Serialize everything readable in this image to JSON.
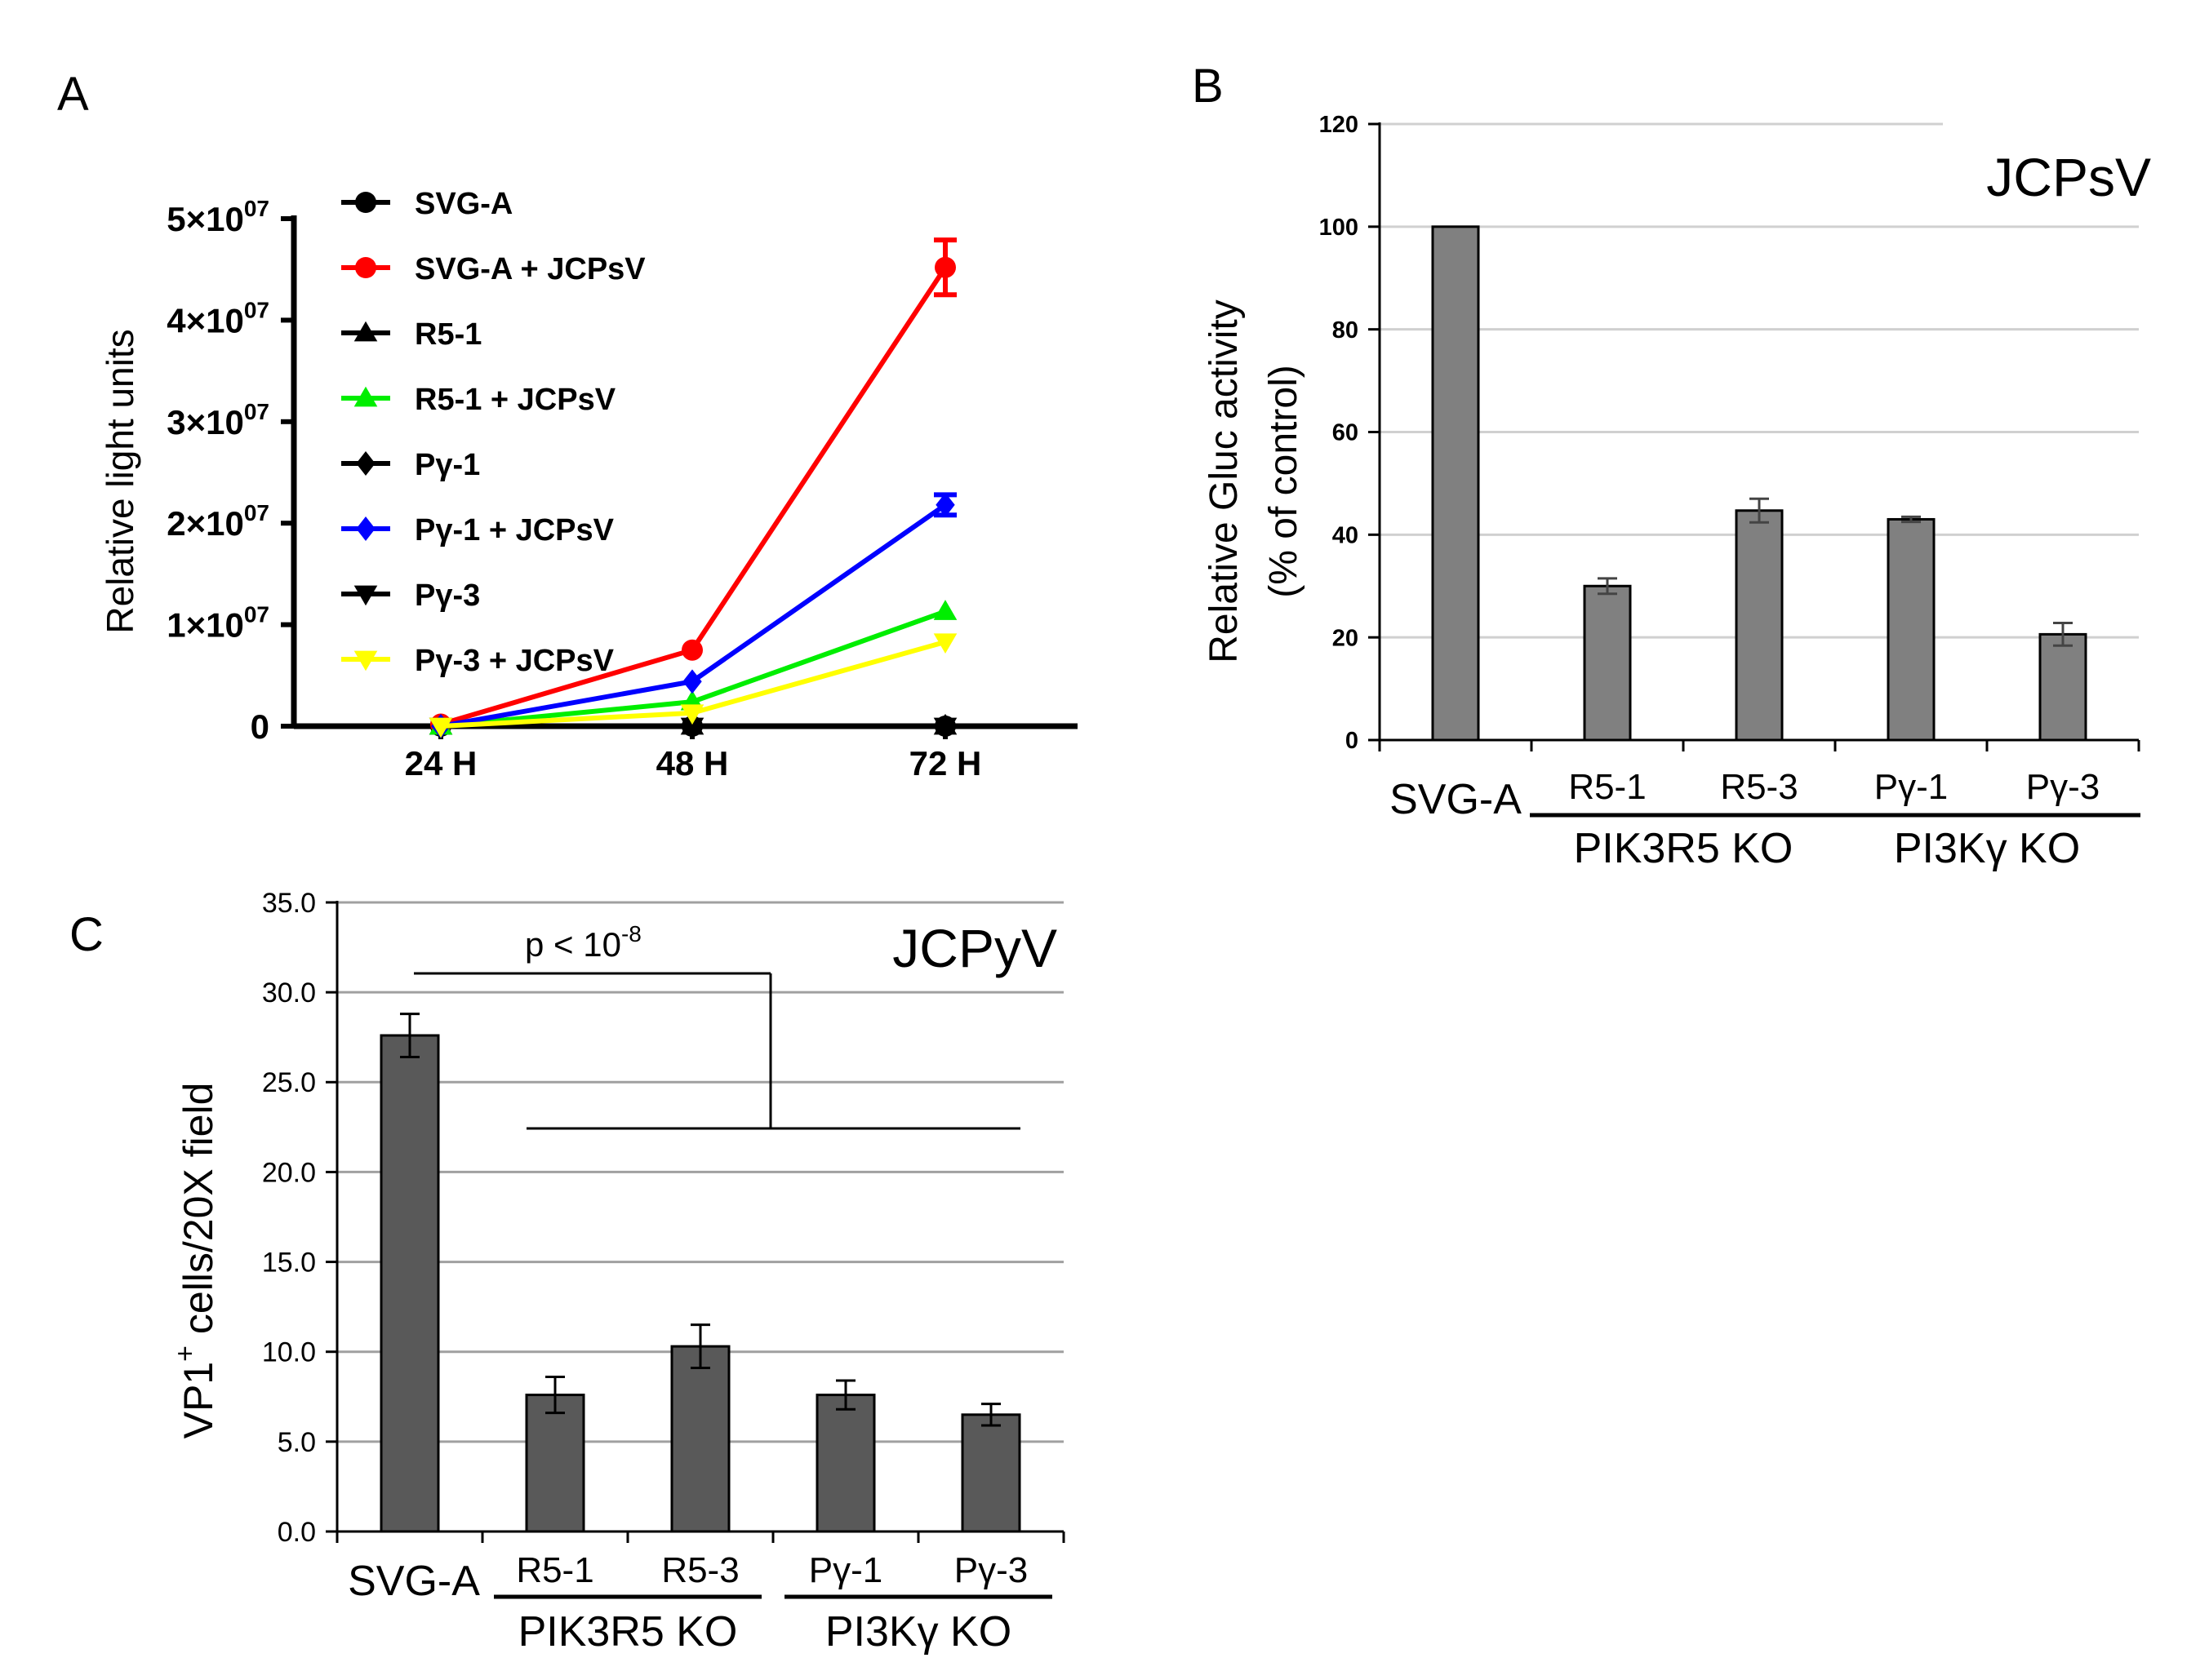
{
  "chart_data": [
    {
      "panel": "A",
      "type": "line",
      "xlabel": "",
      "ylabel": "Relative light units",
      "categories": [
        "24 H",
        "48 H",
        "72 H"
      ],
      "ylim": [
        0,
        50000000
      ],
      "yticks": [
        {
          "value": 0,
          "mantissa": "0",
          "exp": ""
        },
        {
          "value": 10000000,
          "mantissa": "1×10",
          "exp": "07"
        },
        {
          "value": 20000000,
          "mantissa": "2×10",
          "exp": "07"
        },
        {
          "value": 30000000,
          "mantissa": "3×10",
          "exp": "07"
        },
        {
          "value": 40000000,
          "mantissa": "4×10",
          "exp": "07"
        },
        {
          "value": 50000000,
          "mantissa": "5×10",
          "exp": "07"
        }
      ],
      "series": [
        {
          "name": "SVG-A",
          "color": "#000000",
          "marker": "circle",
          "values": [
            0,
            0,
            0
          ],
          "err": [
            0,
            0,
            0
          ]
        },
        {
          "name": "SVG-A + JCPsV",
          "color": "#ff0000",
          "marker": "circle",
          "values": [
            200000,
            7500000,
            45200000
          ],
          "err": [
            0,
            0,
            2700000
          ]
        },
        {
          "name": "R5-1",
          "color": "#000000",
          "marker": "triangle-up",
          "values": [
            0,
            0,
            0
          ],
          "err": [
            0,
            0,
            0
          ]
        },
        {
          "name": "R5-1 + JCPsV",
          "color": "#00ee00",
          "marker": "triangle-up",
          "values": [
            0,
            2400000,
            11300000
          ],
          "err": [
            0,
            0,
            0
          ]
        },
        {
          "name": "Pγ-1",
          "color": "#000000",
          "marker": "diamond",
          "values": [
            0,
            0,
            0
          ],
          "err": [
            0,
            0,
            0
          ]
        },
        {
          "name": "Pγ-1 + JCPsV",
          "color": "#0000ff",
          "marker": "diamond",
          "values": [
            0,
            4400000,
            21800000
          ],
          "err": [
            0,
            0,
            1000000
          ]
        },
        {
          "name": "Pγ-3",
          "color": "#000000",
          "marker": "triangle-down",
          "values": [
            0,
            0,
            0
          ],
          "err": [
            0,
            0,
            0
          ]
        },
        {
          "name": "Pγ-3 + JCPsV",
          "color": "#ffff00",
          "marker": "triangle-down",
          "values": [
            0,
            1300000,
            8300000
          ],
          "err": [
            0,
            0,
            0
          ]
        }
      ]
    },
    {
      "panel": "B",
      "type": "bar",
      "title": "JCPsV",
      "ylabel_line1": "Relative Gluc activity",
      "ylabel_line2": "(% of control)",
      "categories": [
        "SVG-A",
        "R5-1",
        "R5-3",
        "Pγ-1",
        "Pγ-3"
      ],
      "groups": [
        "PIK3R5 KO",
        "PI3Kγ KO"
      ],
      "values": [
        100,
        30,
        44.7,
        43,
        20.6
      ],
      "errors": [
        0,
        1.5,
        2.3,
        0.5,
        2.2
      ],
      "ylim": [
        0,
        120
      ],
      "yticks": [
        "0",
        "20",
        "40",
        "60",
        "80",
        "100",
        "120"
      ],
      "bar_color": "#808080"
    },
    {
      "panel": "C",
      "type": "bar",
      "title": "JCPyV",
      "ylabel": "VP1",
      "ylabel_sup": "+",
      "ylabel_rest": " cells/20X field",
      "categories": [
        "SVG-A",
        "R5-1",
        "R5-3",
        "Pγ-1",
        "Pγ-3"
      ],
      "groups": [
        "PIK3R5 KO",
        "PI3Kγ KO"
      ],
      "values": [
        27.6,
        7.6,
        10.3,
        7.6,
        6.5
      ],
      "errors": [
        1.2,
        1.0,
        1.2,
        0.8,
        0.6
      ],
      "ylim": [
        0,
        35
      ],
      "yticks": [
        "0.0",
        "5.0",
        "10.0",
        "15.0",
        "20.0",
        "25.0",
        "30.0",
        "35.0"
      ],
      "significance": {
        "prefix": "p < 10",
        "exp": "-8"
      },
      "bar_color": "#595959"
    }
  ],
  "panel_labels": {
    "a": "A",
    "b": "B",
    "c": "C"
  }
}
